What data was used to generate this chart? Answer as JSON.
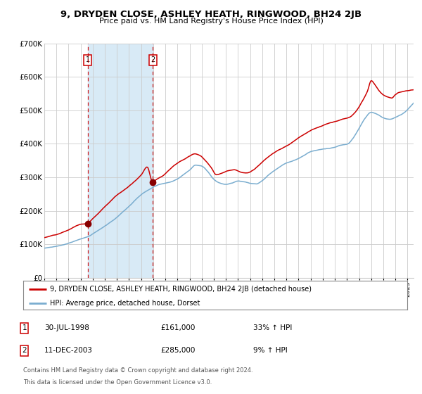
{
  "title": "9, DRYDEN CLOSE, ASHLEY HEATH, RINGWOOD, BH24 2JB",
  "subtitle": "Price paid vs. HM Land Registry's House Price Index (HPI)",
  "legend_line1": "9, DRYDEN CLOSE, ASHLEY HEATH, RINGWOOD, BH24 2JB (detached house)",
  "legend_line2": "HPI: Average price, detached house, Dorset",
  "transaction1_label": "1",
  "transaction1_date": "30-JUL-1998",
  "transaction1_price": 161000,
  "transaction1_hpi": "33% ↑ HPI",
  "transaction2_label": "2",
  "transaction2_date": "11-DEC-2003",
  "transaction2_price": 285000,
  "transaction2_hpi": "9% ↑ HPI",
  "footer_line1": "Contains HM Land Registry data © Crown copyright and database right 2024.",
  "footer_line2": "This data is licensed under the Open Government Licence v3.0.",
  "red_color": "#cc0000",
  "blue_color": "#7aadcf",
  "fill_color": "#d8eaf6",
  "background_color": "#ffffff",
  "grid_color": "#cccccc",
  "ylim": [
    0,
    700000
  ],
  "yticks": [
    0,
    100000,
    200000,
    300000,
    400000,
    500000,
    600000,
    700000
  ],
  "ytick_labels": [
    "£0",
    "£100K",
    "£200K",
    "£300K",
    "£400K",
    "£500K",
    "£600K",
    "£700K"
  ],
  "transaction1_year": 1998.58,
  "transaction2_year": 2003.95,
  "hpi_years": [
    1995.0,
    1995.5,
    1996.0,
    1996.5,
    1997.0,
    1997.5,
    1998.0,
    1998.5,
    1999.0,
    1999.5,
    2000.0,
    2000.5,
    2001.0,
    2001.5,
    2002.0,
    2002.5,
    2003.0,
    2003.5,
    2004.0,
    2004.5,
    2005.0,
    2005.5,
    2006.0,
    2006.5,
    2007.0,
    2007.5,
    2008.0,
    2008.5,
    2009.0,
    2009.5,
    2010.0,
    2010.5,
    2011.0,
    2011.5,
    2012.0,
    2012.5,
    2013.0,
    2013.5,
    2014.0,
    2014.5,
    2015.0,
    2015.5,
    2016.0,
    2016.5,
    2017.0,
    2017.5,
    2018.0,
    2018.5,
    2019.0,
    2019.5,
    2020.0,
    2020.5,
    2021.0,
    2021.5,
    2022.0,
    2022.5,
    2023.0,
    2023.5,
    2024.0,
    2024.5,
    2025.0
  ],
  "hpi_vals": [
    88000,
    91000,
    94000,
    98000,
    103000,
    110000,
    117000,
    122000,
    132000,
    143000,
    155000,
    168000,
    182000,
    198000,
    214000,
    232000,
    248000,
    260000,
    270000,
    278000,
    282000,
    286000,
    294000,
    308000,
    322000,
    338000,
    335000,
    318000,
    295000,
    284000,
    280000,
    284000,
    290000,
    288000,
    284000,
    282000,
    292000,
    308000,
    322000,
    334000,
    344000,
    350000,
    358000,
    368000,
    378000,
    382000,
    385000,
    388000,
    392000,
    398000,
    400000,
    418000,
    448000,
    478000,
    496000,
    490000,
    480000,
    476000,
    482000,
    490000,
    505000
  ],
  "prop_years": [
    1995.0,
    1995.5,
    1996.0,
    1996.5,
    1997.0,
    1997.5,
    1998.0,
    1998.58,
    1999.0,
    1999.5,
    2000.0,
    2000.5,
    2001.0,
    2001.5,
    2002.0,
    2002.5,
    2003.0,
    2003.5,
    2003.95,
    2004.3,
    2004.8,
    2005.2,
    2005.7,
    2006.2,
    2006.7,
    2007.0,
    2007.4,
    2007.8,
    2008.3,
    2008.8,
    2009.2,
    2009.7,
    2010.2,
    2010.7,
    2011.2,
    2011.7,
    2012.2,
    2012.7,
    2013.2,
    2013.7,
    2014.2,
    2014.7,
    2015.2,
    2015.7,
    2016.2,
    2016.7,
    2017.2,
    2017.7,
    2018.2,
    2018.7,
    2019.2,
    2019.7,
    2020.2,
    2020.7,
    2021.2,
    2021.7,
    2022.0,
    2022.3,
    2022.7,
    2023.0,
    2023.3,
    2023.7,
    2024.0,
    2024.3,
    2024.7,
    2025.0
  ],
  "prop_vals": [
    120000,
    124000,
    128000,
    134000,
    141000,
    151000,
    158000,
    161000,
    175000,
    192000,
    210000,
    228000,
    245000,
    258000,
    272000,
    288000,
    305000,
    330000,
    285000,
    295000,
    305000,
    318000,
    335000,
    348000,
    358000,
    365000,
    372000,
    368000,
    352000,
    330000,
    310000,
    315000,
    322000,
    325000,
    318000,
    315000,
    322000,
    338000,
    355000,
    370000,
    382000,
    392000,
    402000,
    415000,
    428000,
    438000,
    448000,
    455000,
    462000,
    468000,
    472000,
    478000,
    482000,
    498000,
    525000,
    560000,
    590000,
    578000,
    558000,
    548000,
    542000,
    538000,
    548000,
    555000,
    558000,
    560000
  ]
}
